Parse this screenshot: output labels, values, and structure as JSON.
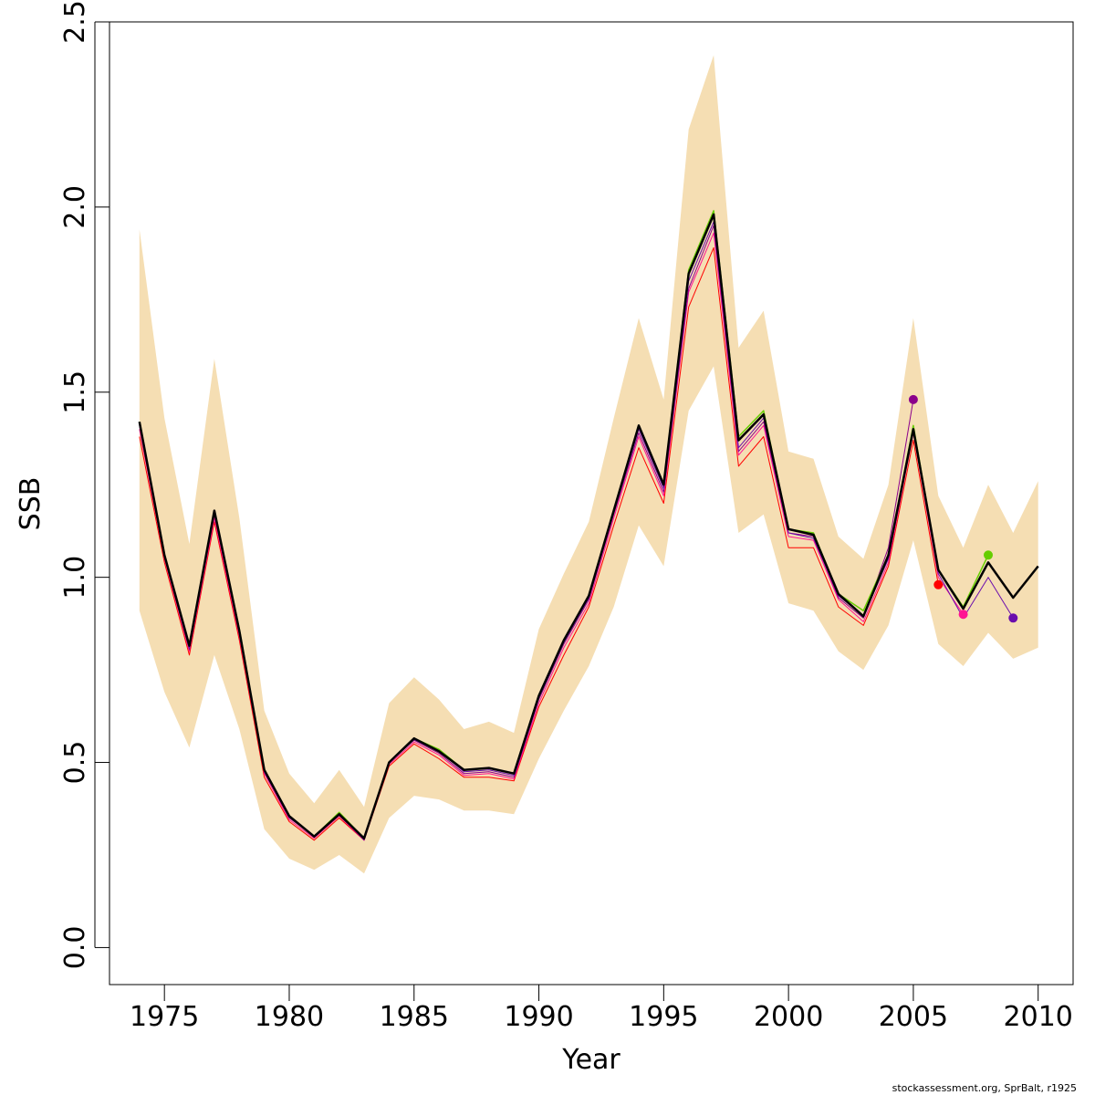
{
  "chart_data": {
    "type": "line",
    "xlabel": "Year",
    "ylabel": "SSB",
    "xlim": [
      1972.8,
      2011.4
    ],
    "ylim": [
      -0.1,
      2.5
    ],
    "x_ticks": [
      1975,
      1980,
      1985,
      1990,
      1995,
      2000,
      2005,
      2010
    ],
    "y_ticks": [
      0.0,
      0.5,
      1.0,
      1.5,
      2.0,
      2.5
    ],
    "x_tick_labels": [
      "1975",
      "1980",
      "1985",
      "1990",
      "1995",
      "2000",
      "2005",
      "2010"
    ],
    "y_tick_labels": [
      "0.0",
      "0.5",
      "1.0",
      "1.5",
      "2.0",
      "2.5"
    ],
    "grid": false,
    "footer": "stockassessment.org, SprBalt, r1925",
    "confidence_band": {
      "color": "#F5DEB3",
      "x": [
        1974,
        1975,
        1976,
        1977,
        1978,
        1979,
        1980,
        1981,
        1982,
        1983,
        1984,
        1985,
        1986,
        1987,
        1988,
        1989,
        1990,
        1991,
        1992,
        1993,
        1994,
        1995,
        1996,
        1997,
        1998,
        1999,
        2000,
        2001,
        2002,
        2003,
        2004,
        2005,
        2006,
        2007,
        2008,
        2009,
        2010
      ],
      "upper": [
        1.94,
        1.43,
        1.09,
        1.59,
        1.16,
        0.64,
        0.47,
        0.39,
        0.48,
        0.38,
        0.66,
        0.73,
        0.67,
        0.59,
        0.61,
        0.58,
        0.86,
        1.01,
        1.15,
        1.43,
        1.7,
        1.48,
        2.21,
        2.41,
        1.62,
        1.72,
        1.34,
        1.32,
        1.11,
        1.05,
        1.25,
        1.7,
        1.22,
        1.08,
        1.25,
        1.12,
        1.26
      ],
      "lower": [
        0.91,
        0.69,
        0.54,
        0.79,
        0.59,
        0.32,
        0.24,
        0.21,
        0.25,
        0.2,
        0.35,
        0.41,
        0.4,
        0.37,
        0.37,
        0.36,
        0.51,
        0.64,
        0.76,
        0.92,
        1.14,
        1.03,
        1.45,
        1.57,
        1.12,
        1.17,
        0.93,
        0.91,
        0.8,
        0.75,
        0.87,
        1.1,
        0.82,
        0.76,
        0.85,
        0.78,
        0.81
      ]
    },
    "series": [
      {
        "color": "#FF0000",
        "width": 1,
        "x": [
          1974,
          1975,
          1976,
          1977,
          1978,
          1979,
          1980,
          1981,
          1982,
          1983,
          1984,
          1985,
          1986,
          1987,
          1988,
          1989,
          1990,
          1991,
          1992,
          1993,
          1994,
          1995,
          1996,
          1997,
          1998,
          1999,
          2000,
          2001,
          2002,
          2003,
          2004,
          2005,
          2006
        ],
        "values": [
          1.38,
          1.04,
          0.79,
          1.15,
          0.83,
          0.46,
          0.34,
          0.29,
          0.35,
          0.29,
          0.49,
          0.55,
          0.51,
          0.46,
          0.46,
          0.45,
          0.65,
          0.79,
          0.92,
          1.14,
          1.35,
          1.2,
          1.73,
          1.89,
          1.3,
          1.38,
          1.08,
          1.08,
          0.92,
          0.87,
          1.03,
          1.37,
          0.98
        ],
        "end_point": {
          "x": 2006,
          "y": 0.98
        }
      },
      {
        "color": "#FF1493",
        "width": 1,
        "x": [
          1974,
          1975,
          1976,
          1977,
          1978,
          1979,
          1980,
          1981,
          1982,
          1983,
          1984,
          1985,
          1986,
          1987,
          1988,
          1989,
          1990,
          1991,
          1992,
          1993,
          1994,
          1995,
          1996,
          1997,
          1998,
          1999,
          2000,
          2001,
          2002,
          2003,
          2004,
          2005,
          2006,
          2007
        ],
        "values": [
          1.4,
          1.05,
          0.8,
          1.16,
          0.84,
          0.47,
          0.345,
          0.295,
          0.355,
          0.29,
          0.495,
          0.555,
          0.52,
          0.465,
          0.47,
          0.455,
          0.66,
          0.81,
          0.93,
          1.16,
          1.38,
          1.22,
          1.77,
          1.93,
          1.33,
          1.41,
          1.11,
          1.1,
          0.94,
          0.88,
          1.04,
          1.39,
          1.0,
          0.9
        ],
        "end_point": {
          "x": 2007,
          "y": 0.9
        }
      },
      {
        "color": "#8B008B",
        "width": 1,
        "x": [
          1974,
          1975,
          1976,
          1977,
          1978,
          1979,
          1980,
          1981,
          1982,
          1983,
          1984,
          1985,
          1986,
          1987,
          1988,
          1989,
          1990,
          1991,
          1992,
          1993,
          1994,
          1995,
          1996,
          1997,
          1998,
          1999,
          2000,
          2001,
          2002,
          2003,
          2004,
          2005
        ],
        "values": [
          1.41,
          1.055,
          0.805,
          1.17,
          0.85,
          0.475,
          0.35,
          0.3,
          0.36,
          0.29,
          0.5,
          0.56,
          0.525,
          0.47,
          0.475,
          0.46,
          0.67,
          0.82,
          0.94,
          1.17,
          1.39,
          1.23,
          1.78,
          1.95,
          1.34,
          1.42,
          1.12,
          1.11,
          0.945,
          0.89,
          1.08,
          1.48
        ],
        "end_point": {
          "x": 2005,
          "y": 1.48
        }
      },
      {
        "color": "#66CD00",
        "width": 1.5,
        "x": [
          1974,
          1975,
          1976,
          1977,
          1978,
          1979,
          1980,
          1981,
          1982,
          1983,
          1984,
          1985,
          1986,
          1987,
          1988,
          1989,
          1990,
          1991,
          1992,
          1993,
          1994,
          1995,
          1996,
          1997,
          1998,
          1999,
          2000,
          2001,
          2002,
          2003,
          2004,
          2005,
          2006,
          2007,
          2008
        ],
        "values": [
          1.42,
          1.06,
          0.815,
          1.18,
          0.86,
          0.48,
          0.355,
          0.3,
          0.365,
          0.295,
          0.5,
          0.565,
          0.535,
          0.48,
          0.485,
          0.47,
          0.68,
          0.83,
          0.95,
          1.18,
          1.41,
          1.25,
          1.83,
          1.99,
          1.38,
          1.45,
          1.13,
          1.12,
          0.955,
          0.91,
          1.06,
          1.41,
          1.02,
          0.92,
          1.06
        ],
        "end_point": {
          "x": 2008,
          "y": 1.06
        }
      },
      {
        "color": "#6A0DAD",
        "width": 1,
        "x": [
          1974,
          1975,
          1976,
          1977,
          1978,
          1979,
          1980,
          1981,
          1982,
          1983,
          1984,
          1985,
          1986,
          1987,
          1988,
          1989,
          1990,
          1991,
          1992,
          1993,
          1994,
          1995,
          1996,
          1997,
          1998,
          1999,
          2000,
          2001,
          2002,
          2003,
          2004,
          2005,
          2006,
          2007,
          2008,
          2009
        ],
        "values": [
          1.415,
          1.058,
          0.81,
          1.175,
          0.855,
          0.475,
          0.352,
          0.298,
          0.362,
          0.292,
          0.498,
          0.562,
          0.53,
          0.475,
          0.48,
          0.465,
          0.675,
          0.825,
          0.945,
          1.175,
          1.4,
          1.24,
          1.8,
          1.96,
          1.35,
          1.43,
          1.12,
          1.105,
          0.95,
          0.895,
          1.05,
          1.4,
          1.01,
          0.89,
          1.0,
          0.89
        ],
        "end_point": {
          "x": 2009,
          "y": 0.89
        }
      },
      {
        "color": "#000000",
        "width": 2.5,
        "x": [
          1974,
          1975,
          1976,
          1977,
          1978,
          1979,
          1980,
          1981,
          1982,
          1983,
          1984,
          1985,
          1986,
          1987,
          1988,
          1989,
          1990,
          1991,
          1992,
          1993,
          1994,
          1995,
          1996,
          1997,
          1998,
          1999,
          2000,
          2001,
          2002,
          2003,
          2004,
          2005,
          2006,
          2007,
          2008,
          2009,
          2010
        ],
        "values": [
          1.42,
          1.06,
          0.815,
          1.18,
          0.855,
          0.48,
          0.355,
          0.3,
          0.36,
          0.295,
          0.5,
          0.565,
          0.53,
          0.48,
          0.485,
          0.47,
          0.68,
          0.83,
          0.95,
          1.18,
          1.41,
          1.25,
          1.82,
          1.98,
          1.37,
          1.44,
          1.13,
          1.115,
          0.955,
          0.895,
          1.06,
          1.4,
          1.02,
          0.915,
          1.04,
          0.945,
          1.03
        ]
      }
    ]
  }
}
